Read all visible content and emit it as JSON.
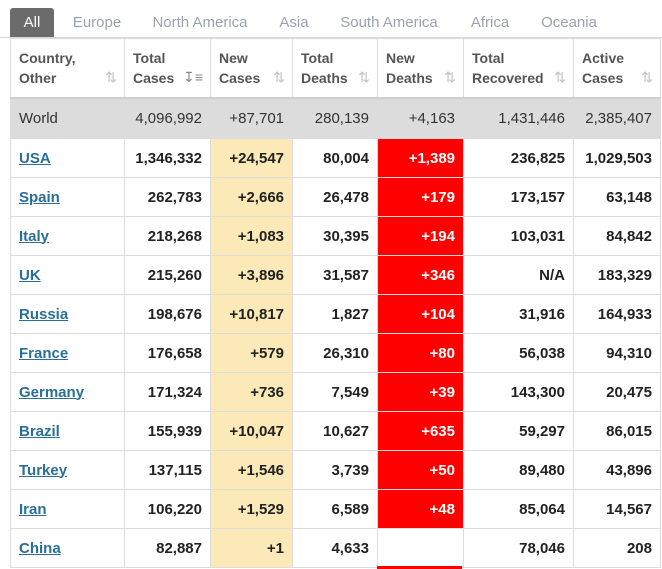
{
  "tabs": [
    "All",
    "Europe",
    "North America",
    "Asia",
    "South America",
    "Africa",
    "Oceania"
  ],
  "active_tab": "All",
  "columns": [
    {
      "line1": "Country,",
      "line2": "Other"
    },
    {
      "line1": "Total",
      "line2": "Cases"
    },
    {
      "line1": "New",
      "line2": "Cases"
    },
    {
      "line1": "Total",
      "line2": "Deaths"
    },
    {
      "line1": "New",
      "line2": "Deaths"
    },
    {
      "line1": "Total",
      "line2": "Recovered"
    },
    {
      "line1": "Active",
      "line2": "Cases"
    }
  ],
  "sorted_column": "Total Cases",
  "world": {
    "country": "World",
    "total_cases": "4,096,992",
    "new_cases": "+87,701",
    "total_deaths": "280,139",
    "new_deaths": "+4,163",
    "total_recovered": "1,431,446",
    "active_cases": "2,385,407"
  },
  "rows": [
    {
      "country": "USA",
      "total_cases": "1,346,332",
      "new_cases": "+24,547",
      "total_deaths": "80,004",
      "new_deaths": "+1,389",
      "total_recovered": "236,825",
      "active_cases": "1,029,503"
    },
    {
      "country": "Spain",
      "total_cases": "262,783",
      "new_cases": "+2,666",
      "total_deaths": "26,478",
      "new_deaths": "+179",
      "total_recovered": "173,157",
      "active_cases": "63,148"
    },
    {
      "country": "Italy",
      "total_cases": "218,268",
      "new_cases": "+1,083",
      "total_deaths": "30,395",
      "new_deaths": "+194",
      "total_recovered": "103,031",
      "active_cases": "84,842"
    },
    {
      "country": "UK",
      "total_cases": "215,260",
      "new_cases": "+3,896",
      "total_deaths": "31,587",
      "new_deaths": "+346",
      "total_recovered": "N/A",
      "active_cases": "183,329"
    },
    {
      "country": "Russia",
      "total_cases": "198,676",
      "new_cases": "+10,817",
      "total_deaths": "1,827",
      "new_deaths": "+104",
      "total_recovered": "31,916",
      "active_cases": "164,933"
    },
    {
      "country": "France",
      "total_cases": "176,658",
      "new_cases": "+579",
      "total_deaths": "26,310",
      "new_deaths": "+80",
      "total_recovered": "56,038",
      "active_cases": "94,310"
    },
    {
      "country": "Germany",
      "total_cases": "171,324",
      "new_cases": "+736",
      "total_deaths": "7,549",
      "new_deaths": "+39",
      "total_recovered": "143,300",
      "active_cases": "20,475"
    },
    {
      "country": "Brazil",
      "total_cases": "155,939",
      "new_cases": "+10,047",
      "total_deaths": "10,627",
      "new_deaths": "+635",
      "total_recovered": "59,297",
      "active_cases": "86,015"
    },
    {
      "country": "Turkey",
      "total_cases": "137,115",
      "new_cases": "+1,546",
      "total_deaths": "3,739",
      "new_deaths": "+50",
      "total_recovered": "89,480",
      "active_cases": "43,896"
    },
    {
      "country": "Iran",
      "total_cases": "106,220",
      "new_cases": "+1,529",
      "total_deaths": "6,589",
      "new_deaths": "+48",
      "total_recovered": "85,064",
      "active_cases": "14,567"
    },
    {
      "country": "China",
      "total_cases": "82,887",
      "new_cases": "+1",
      "total_deaths": "4,633",
      "new_deaths": "",
      "total_recovered": "78,046",
      "active_cases": "208"
    }
  ],
  "colors": {
    "active_tab_bg": "#6b6b6b",
    "new_cases_bg": "#fbeab8",
    "new_deaths_bg": "#ff0000",
    "world_row_bg": "#dcdcdc",
    "country_link": "#2a6e9a"
  },
  "icons": {
    "sort": "sort-arrows-icon",
    "sort_active": "sort-descending-icon"
  }
}
